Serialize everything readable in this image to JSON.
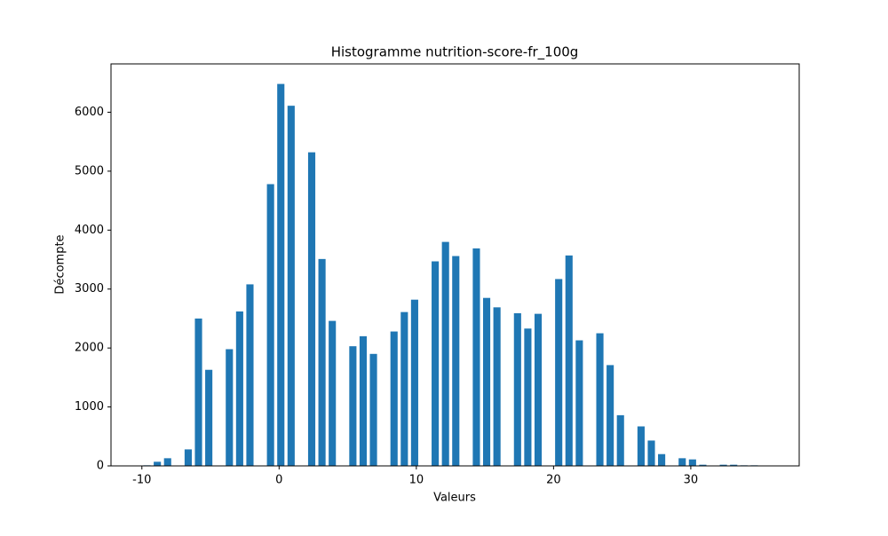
{
  "chart_data": {
    "type": "histogram",
    "title": "Histogramme nutrition-score-fr_100g",
    "xlabel": "Valeurs",
    "ylabel": "Décompte",
    "color": "#1f77b4",
    "bins": [
      -10,
      -9.25,
      -8.5,
      -7.75,
      -7,
      -6.25,
      -5.5,
      -4.75,
      -4,
      -3.25,
      -2.5,
      -1.75,
      -1,
      -0.25,
      0.5,
      1.25,
      2,
      2.75,
      3.5,
      4.25,
      5,
      5.75,
      6.5,
      7.25,
      8,
      8.75,
      9.5,
      10.25,
      11,
      11.75,
      12.5,
      13.25,
      14,
      14.75,
      15.5,
      16.25,
      17,
      17.75,
      18.5,
      19.25,
      20,
      20.75,
      21.5,
      22.25,
      23,
      23.75,
      24.5,
      25.25,
      26,
      26.75,
      27.5,
      28.25,
      29,
      29.75,
      30.5,
      31.25,
      32,
      32.75,
      33.5,
      34.25,
      35
    ],
    "values": [
      10,
      70,
      130,
      0,
      280,
      2500,
      1630,
      0,
      1980,
      2620,
      3080,
      0,
      4780,
      6480,
      6110,
      0,
      5320,
      3510,
      2460,
      0,
      2030,
      2200,
      1900,
      0,
      2280,
      2610,
      2820,
      0,
      3470,
      3800,
      3560,
      0,
      3690,
      2850,
      2690,
      0,
      2590,
      2330,
      2580,
      0,
      3170,
      3570,
      2130,
      0,
      2250,
      1710,
      860,
      0,
      670,
      430,
      200,
      0,
      130,
      110,
      20,
      0,
      20,
      20,
      10,
      10
    ],
    "xlim": [
      -12.25,
      37.9
    ],
    "xticks": [
      -10,
      0,
      10,
      20,
      30
    ],
    "ylim": [
      0,
      6820
    ],
    "yticks": [
      0,
      1000,
      2000,
      3000,
      4000,
      5000,
      6000
    ]
  }
}
